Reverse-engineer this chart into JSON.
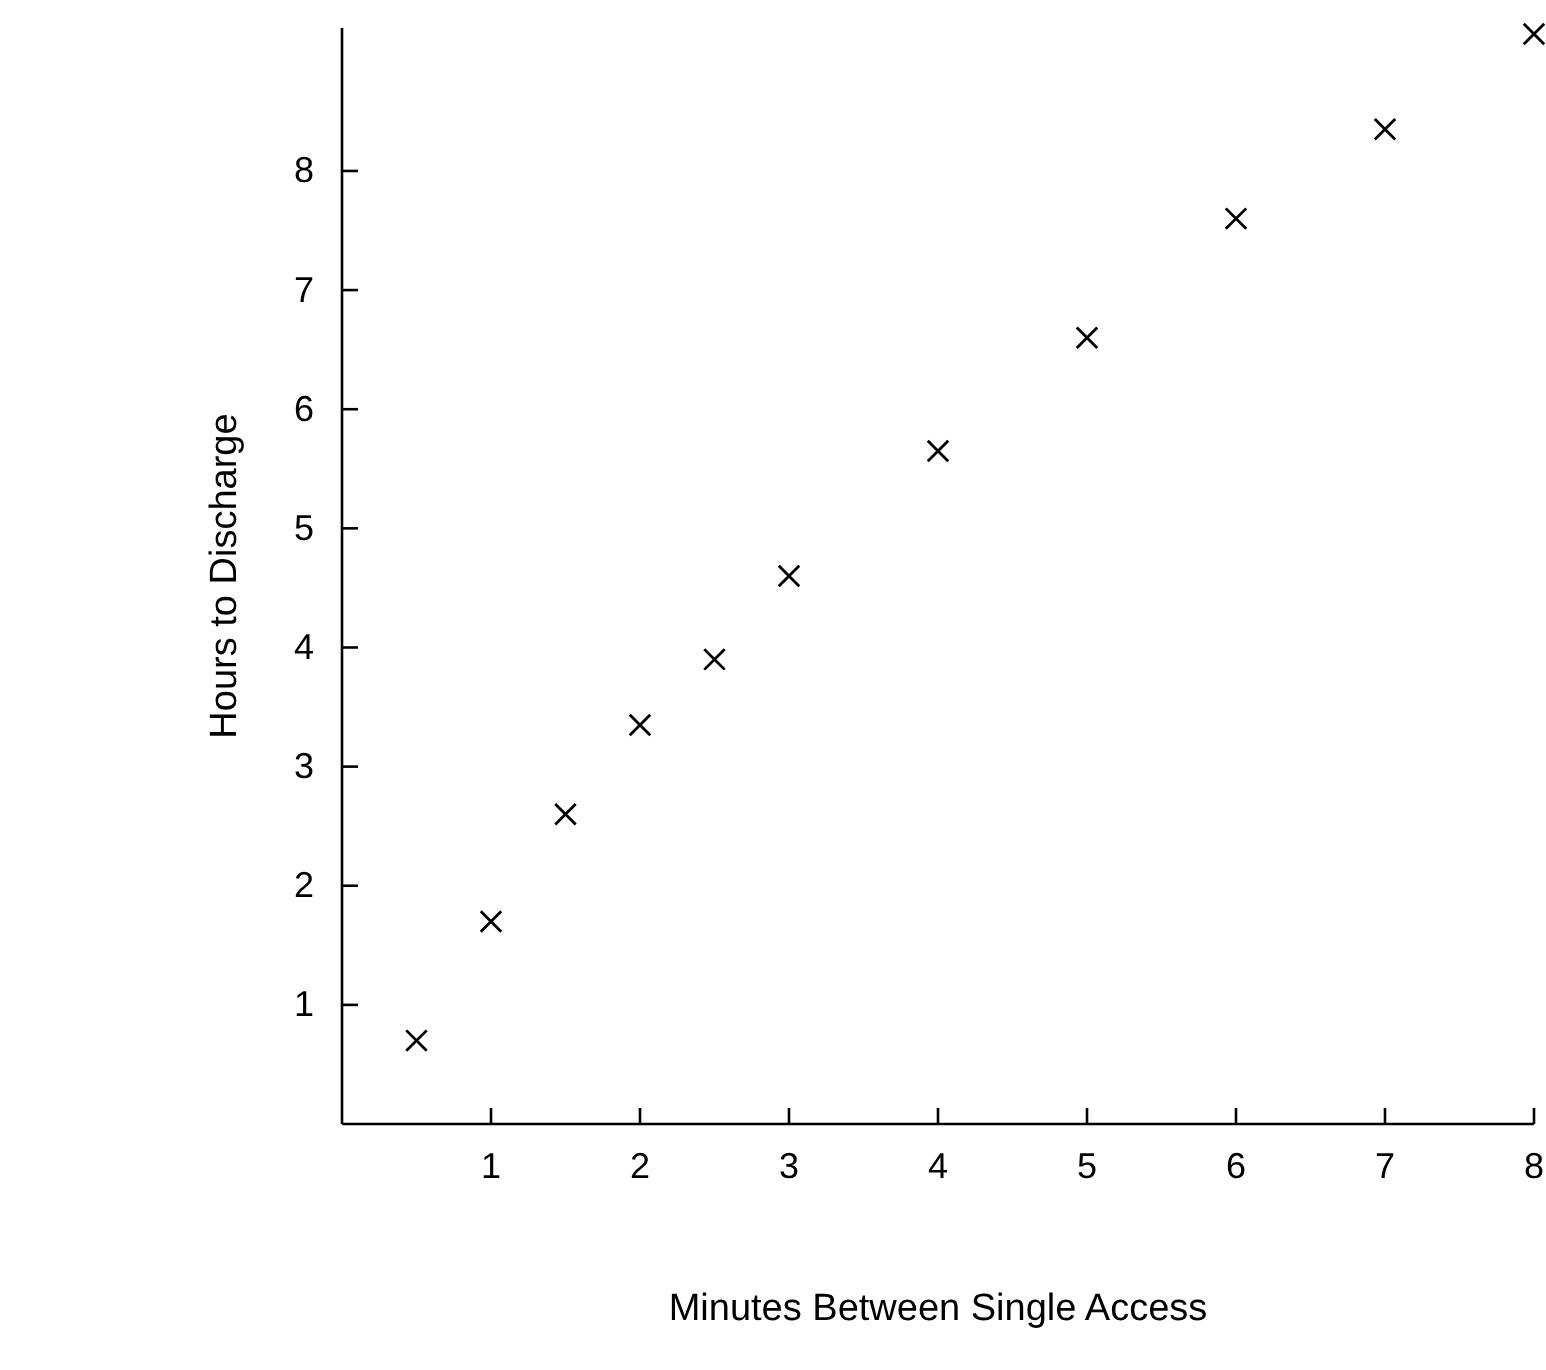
{
  "chart_data": {
    "type": "scatter",
    "xlabel": "Minutes Between Single Access",
    "ylabel": "Hours to Discharge",
    "x": [
      0.5,
      1,
      1.5,
      2,
      2.5,
      3,
      4,
      5,
      6,
      7,
      8
    ],
    "values": [
      0.7,
      1.7,
      2.6,
      3.35,
      3.9,
      4.6,
      5.65,
      6.6,
      7.6,
      8.35,
      9.15
    ],
    "color": "#000000",
    "marker": "cross",
    "grid": false,
    "xlim": [
      0,
      8
    ],
    "xticks": [
      1,
      2,
      3,
      4,
      5,
      6,
      7,
      8
    ],
    "ylim": [
      0,
      9.2
    ],
    "yticks": [
      1,
      2,
      3,
      4,
      5,
      6,
      7,
      8
    ]
  }
}
